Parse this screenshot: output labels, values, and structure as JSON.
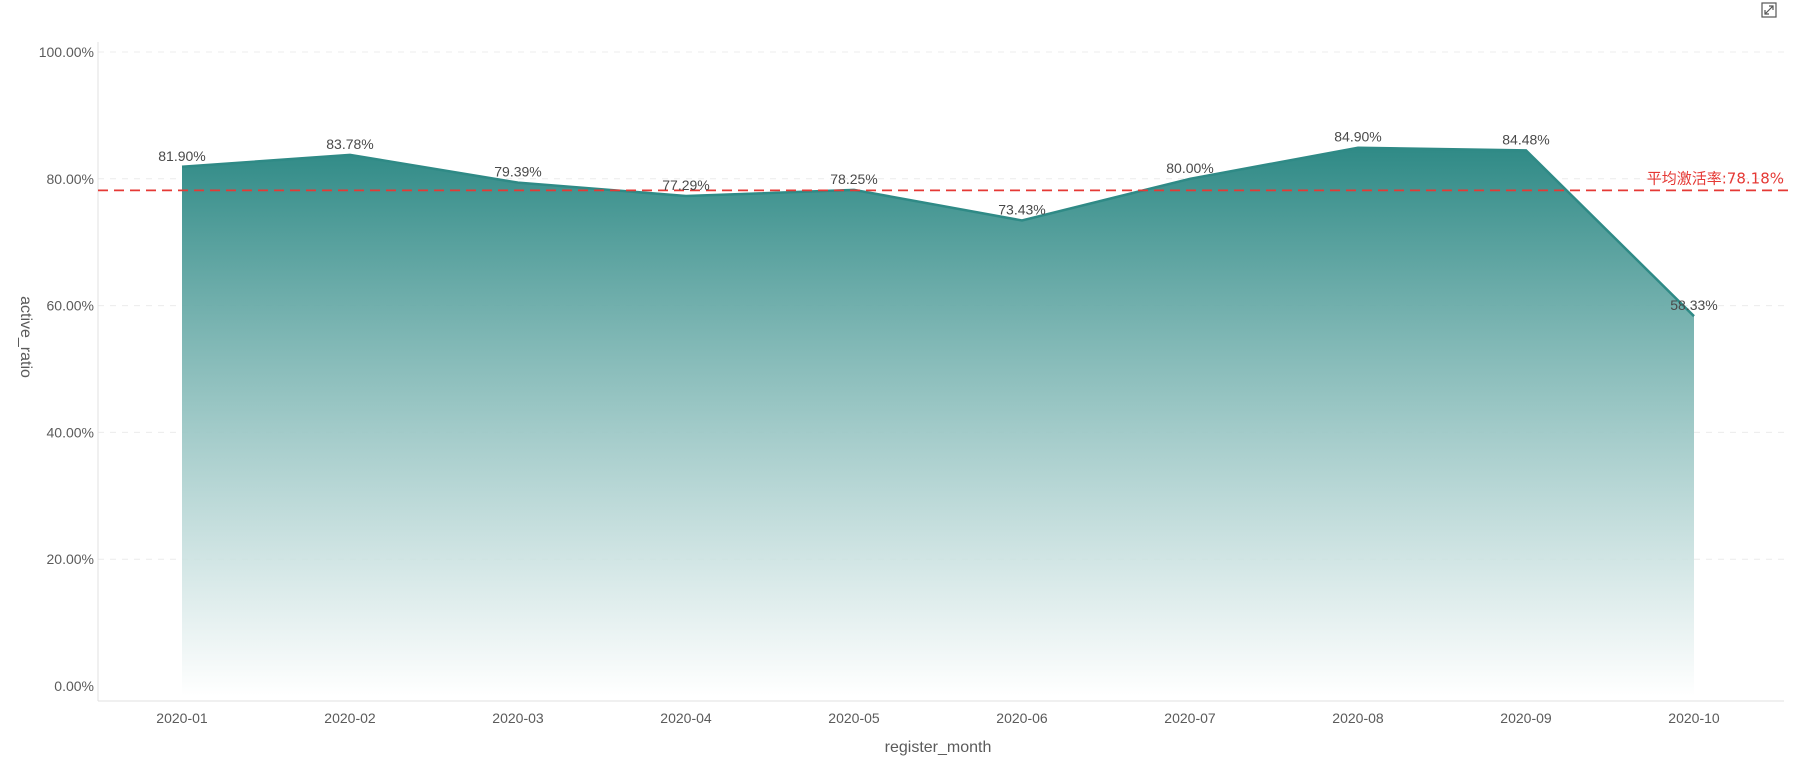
{
  "colors": {
    "series": "#2f8a86",
    "area_top": "#2f8a86",
    "area_bottom": "#ffffff",
    "reference_line": "#e53935",
    "axis_text": "#5b5b5b",
    "data_label": "#4a4a4a"
  },
  "toolbar": {
    "expand_icon": "expand-icon"
  },
  "chart_data": {
    "type": "area",
    "title": "",
    "xlabel": "register_month",
    "ylabel": "active_ratio",
    "categories": [
      "2020-01",
      "2020-02",
      "2020-03",
      "2020-04",
      "2020-05",
      "2020-06",
      "2020-07",
      "2020-08",
      "2020-09",
      "2020-10"
    ],
    "values": [
      81.9,
      83.78,
      79.39,
      77.29,
      78.25,
      73.43,
      80.0,
      84.9,
      84.48,
      58.33
    ],
    "value_labels": [
      "81.90%",
      "83.78%",
      "79.39%",
      "77.29%",
      "78.25%",
      "73.43%",
      "80.00%",
      "84.90%",
      "84.48%",
      "58.33%"
    ],
    "ylim": [
      0,
      100
    ],
    "y_ticks": [
      0,
      20,
      40,
      60,
      80,
      100
    ],
    "y_tick_labels": [
      "0.00%",
      "20.00%",
      "40.00%",
      "60.00%",
      "80.00%",
      "100.00%"
    ],
    "grid": true,
    "legend": "none",
    "reference_line": {
      "value": 78.18,
      "label": "平均激活率:78.18%",
      "style": "dashed"
    }
  }
}
